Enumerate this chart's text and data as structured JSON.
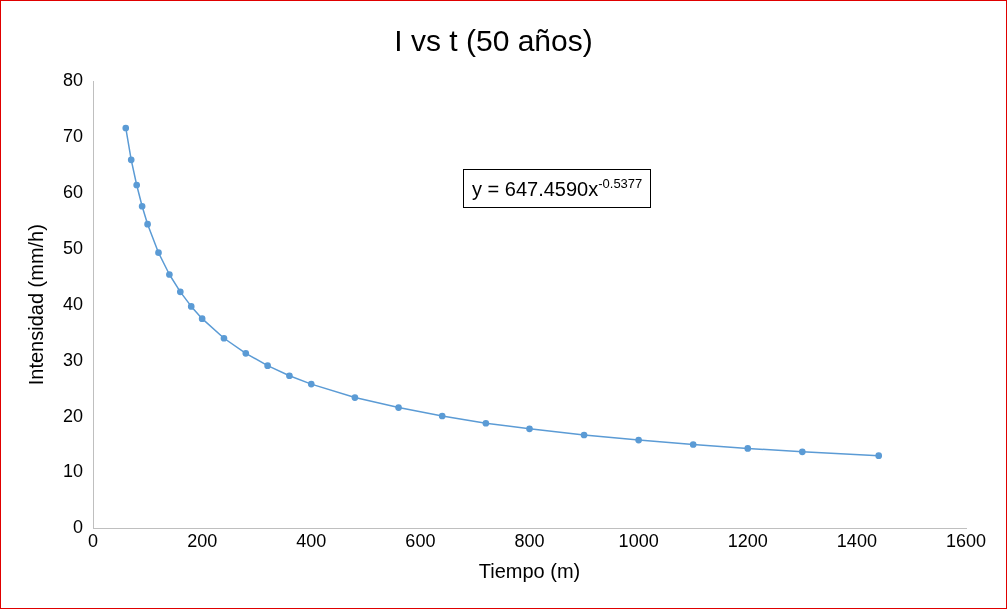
{
  "chart_data": {
    "type": "line",
    "title": "I vs t (50 años)",
    "xlabel": "Tiempo (m)",
    "ylabel": "Intensidad (mm/h)",
    "x": [
      60,
      70,
      80,
      90,
      100,
      120,
      140,
      160,
      180,
      200,
      240,
      280,
      320,
      360,
      400,
      480,
      560,
      640,
      720,
      800,
      900,
      1000,
      1100,
      1200,
      1300,
      1440
    ],
    "series": [
      {
        "color": "#5b9bd5",
        "values": [
          71.6,
          65.9,
          61.4,
          57.6,
          54.4,
          49.3,
          45.4,
          42.3,
          39.7,
          37.5,
          34.0,
          31.3,
          29.1,
          27.3,
          25.8,
          23.4,
          21.6,
          20.1,
          18.8,
          17.8,
          16.7,
          15.8,
          15.0,
          14.3,
          13.7,
          13.0
        ]
      }
    ],
    "xlim": [
      0,
      1600
    ],
    "xticks": [
      0,
      200,
      400,
      600,
      800,
      1000,
      1200,
      1400,
      1600
    ],
    "ylim": [
      0,
      80
    ],
    "yticks": [
      0,
      10,
      20,
      30,
      40,
      50,
      60,
      70,
      80
    ],
    "grid": false,
    "legend": false,
    "marker": "circle",
    "line_style": "solid",
    "annotations": [
      "y = 647.4590x$^{-0.5377}$"
    ]
  }
}
